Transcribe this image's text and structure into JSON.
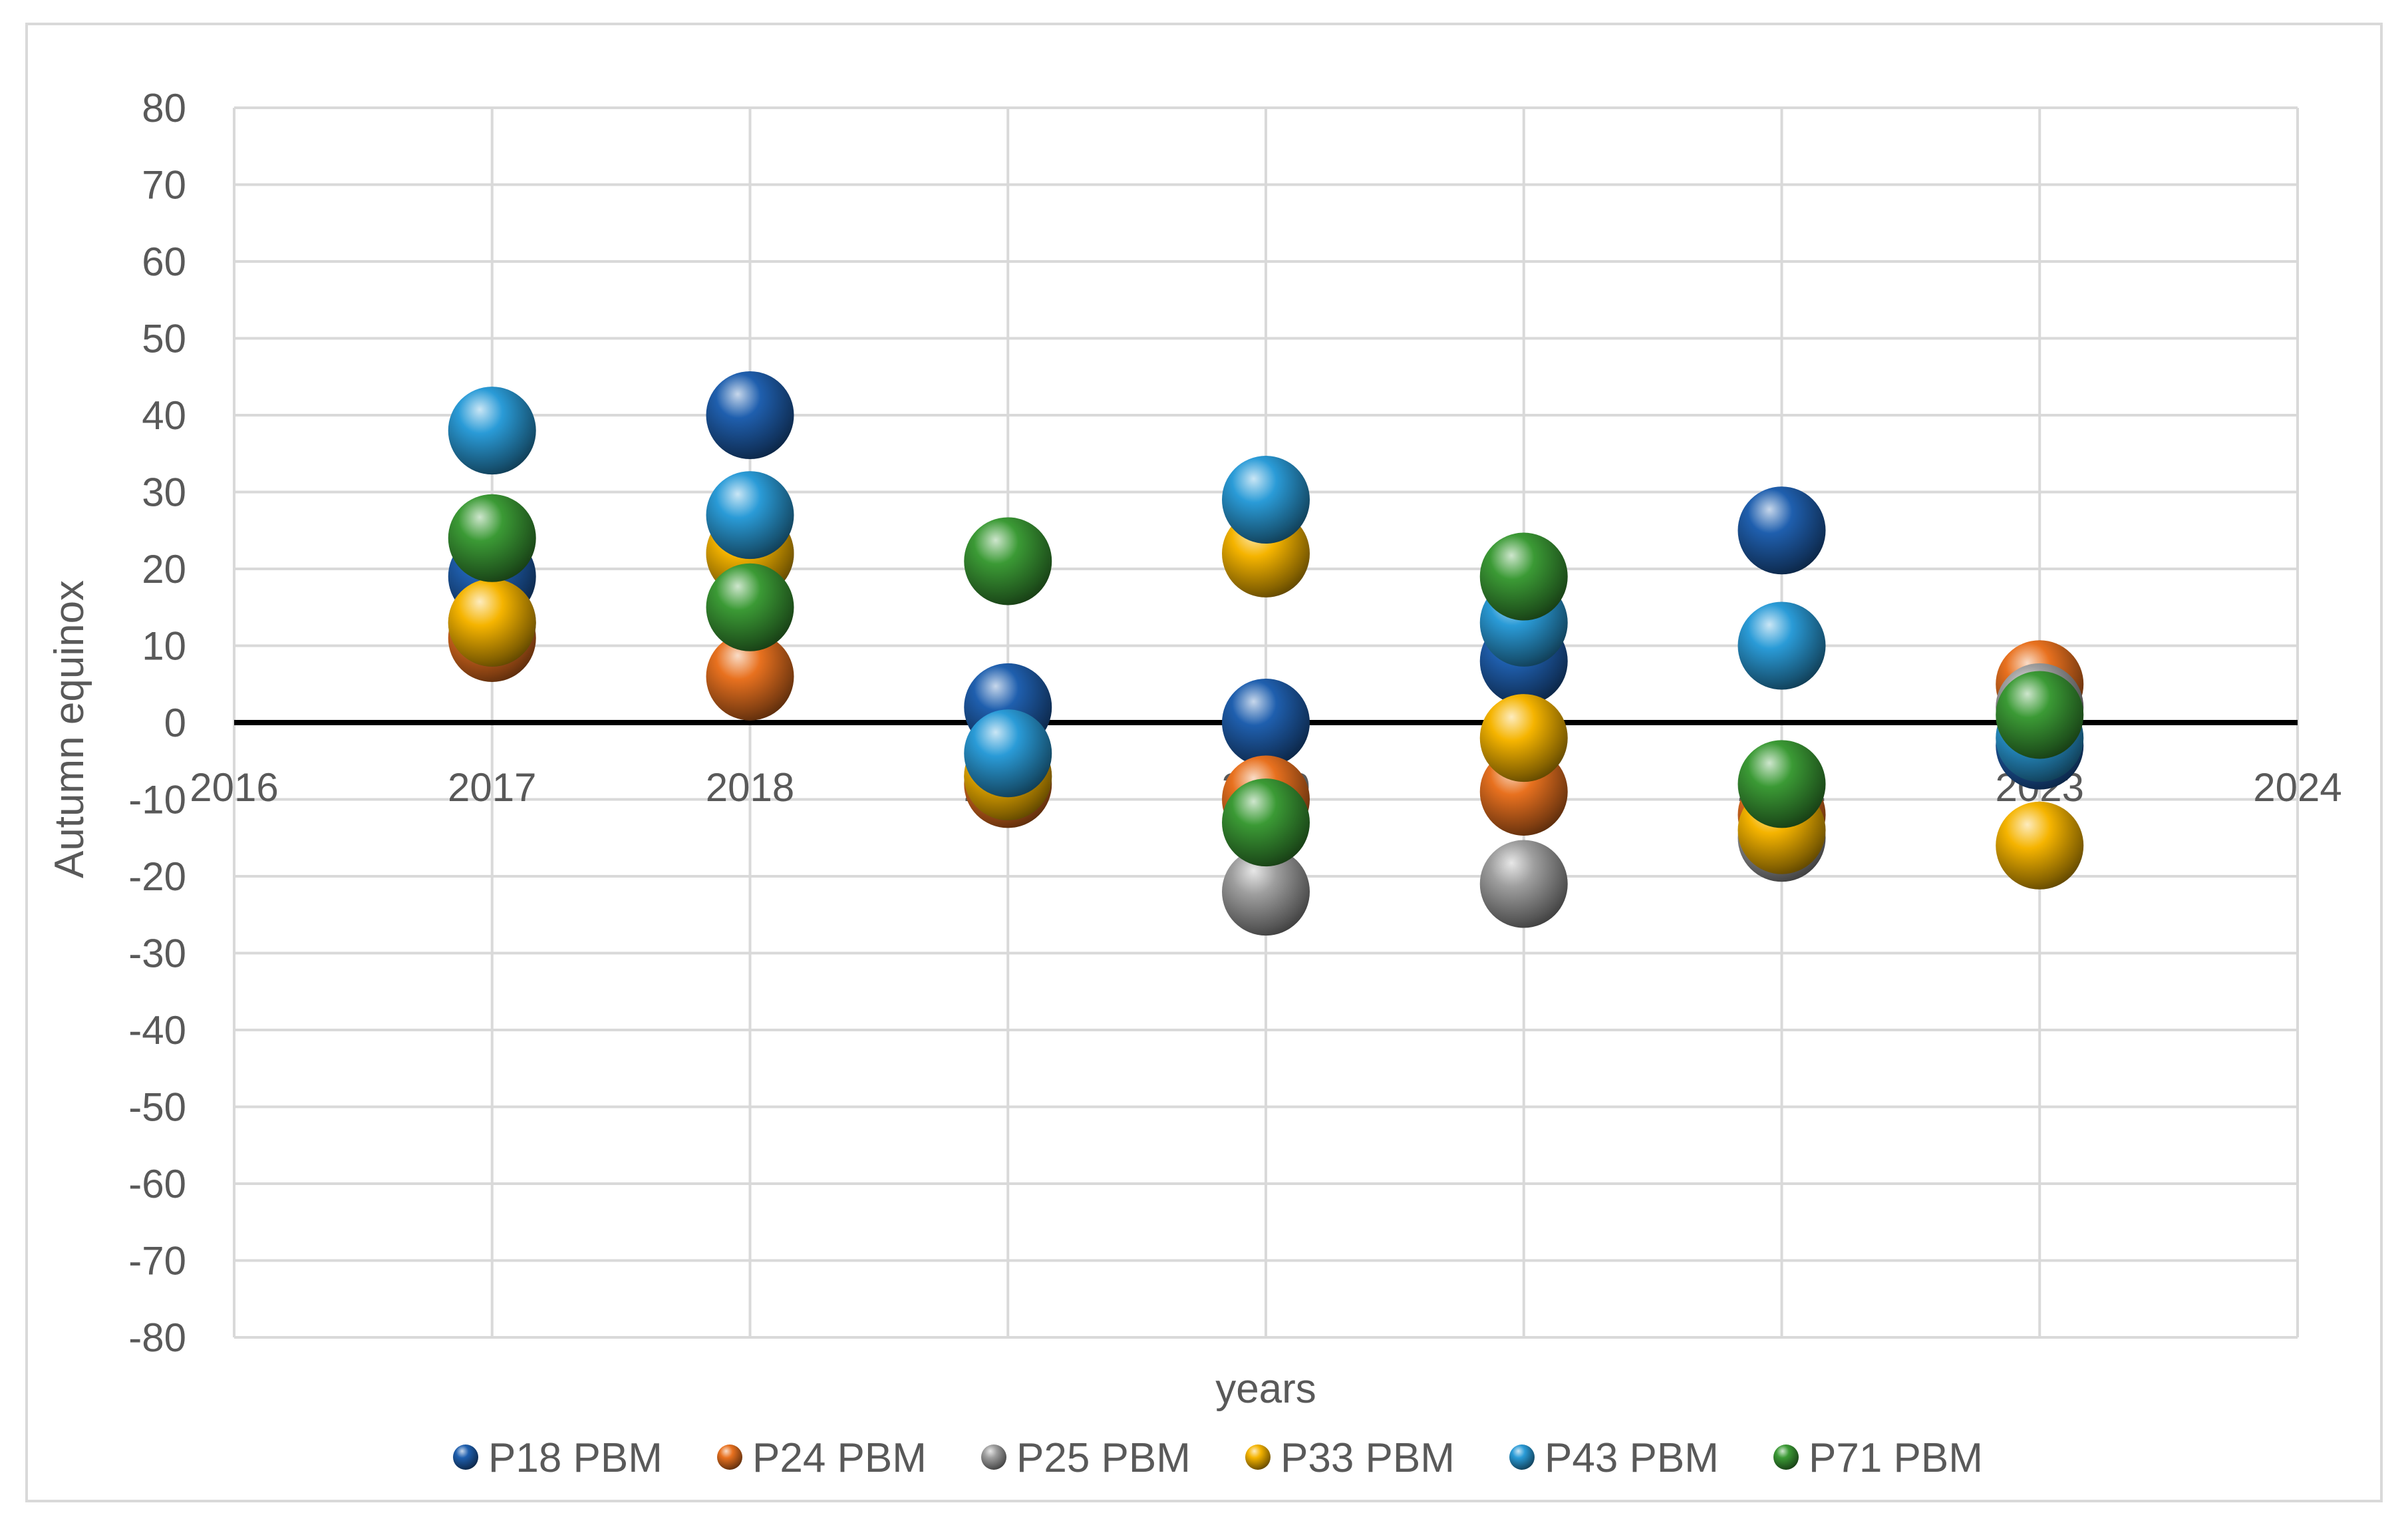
{
  "chart_data": {
    "type": "scatter",
    "title": "",
    "xlabel": "years",
    "ylabel": "Autumn equinox",
    "xlim": [
      2016,
      2024
    ],
    "ylim": [
      -80,
      80
    ],
    "x_ticks": [
      2016,
      2017,
      2018,
      2019,
      2020,
      2021,
      2022,
      2023,
      2024
    ],
    "y_ticks": [
      80,
      70,
      60,
      50,
      40,
      30,
      20,
      10,
      0,
      -10,
      -20,
      -30,
      -40,
      -50,
      -60,
      -70,
      -80
    ],
    "grid": true,
    "zero_line": true,
    "legend_position": "bottom",
    "series": [
      {
        "name": "P18 PBM",
        "color": "#1f5fae",
        "points": [
          [
            2017,
            19
          ],
          [
            2018,
            40
          ],
          [
            2019,
            2
          ],
          [
            2020,
            0
          ],
          [
            2021,
            8
          ],
          [
            2022,
            25
          ],
          [
            2023,
            -3
          ]
        ]
      },
      {
        "name": "P24 PBM",
        "color": "#e8711f",
        "points": [
          [
            2017,
            11
          ],
          [
            2018,
            6
          ],
          [
            2019,
            -8
          ],
          [
            2020,
            -10
          ],
          [
            2021,
            -9
          ],
          [
            2022,
            -12
          ],
          [
            2023,
            5
          ]
        ]
      },
      {
        "name": "P25 PBM",
        "color": "#9e9e9e",
        "points": [
          [
            2017,
            13
          ],
          [
            2018,
            22
          ],
          [
            2019,
            -7
          ],
          [
            2020,
            -22
          ],
          [
            2021,
            -21
          ],
          [
            2022,
            -15
          ],
          [
            2023,
            2
          ]
        ]
      },
      {
        "name": "P33 PBM",
        "color": "#f5b400",
        "points": [
          [
            2017,
            13
          ],
          [
            2018,
            22
          ],
          [
            2019,
            -7
          ],
          [
            2020,
            22
          ],
          [
            2021,
            -2
          ],
          [
            2022,
            -14
          ],
          [
            2023,
            -16
          ]
        ]
      },
      {
        "name": "P43 PBM",
        "color": "#2a9bd7",
        "points": [
          [
            2017,
            38
          ],
          [
            2018,
            27
          ],
          [
            2019,
            -4
          ],
          [
            2020,
            29
          ],
          [
            2021,
            13
          ],
          [
            2022,
            10
          ],
          [
            2023,
            -2
          ]
        ]
      },
      {
        "name": "P71 PBM",
        "color": "#3b9a35",
        "points": [
          [
            2017,
            24
          ],
          [
            2018,
            15
          ],
          [
            2019,
            21
          ],
          [
            2020,
            -13
          ],
          [
            2021,
            19
          ],
          [
            2022,
            -8
          ],
          [
            2023,
            1
          ]
        ]
      }
    ]
  }
}
